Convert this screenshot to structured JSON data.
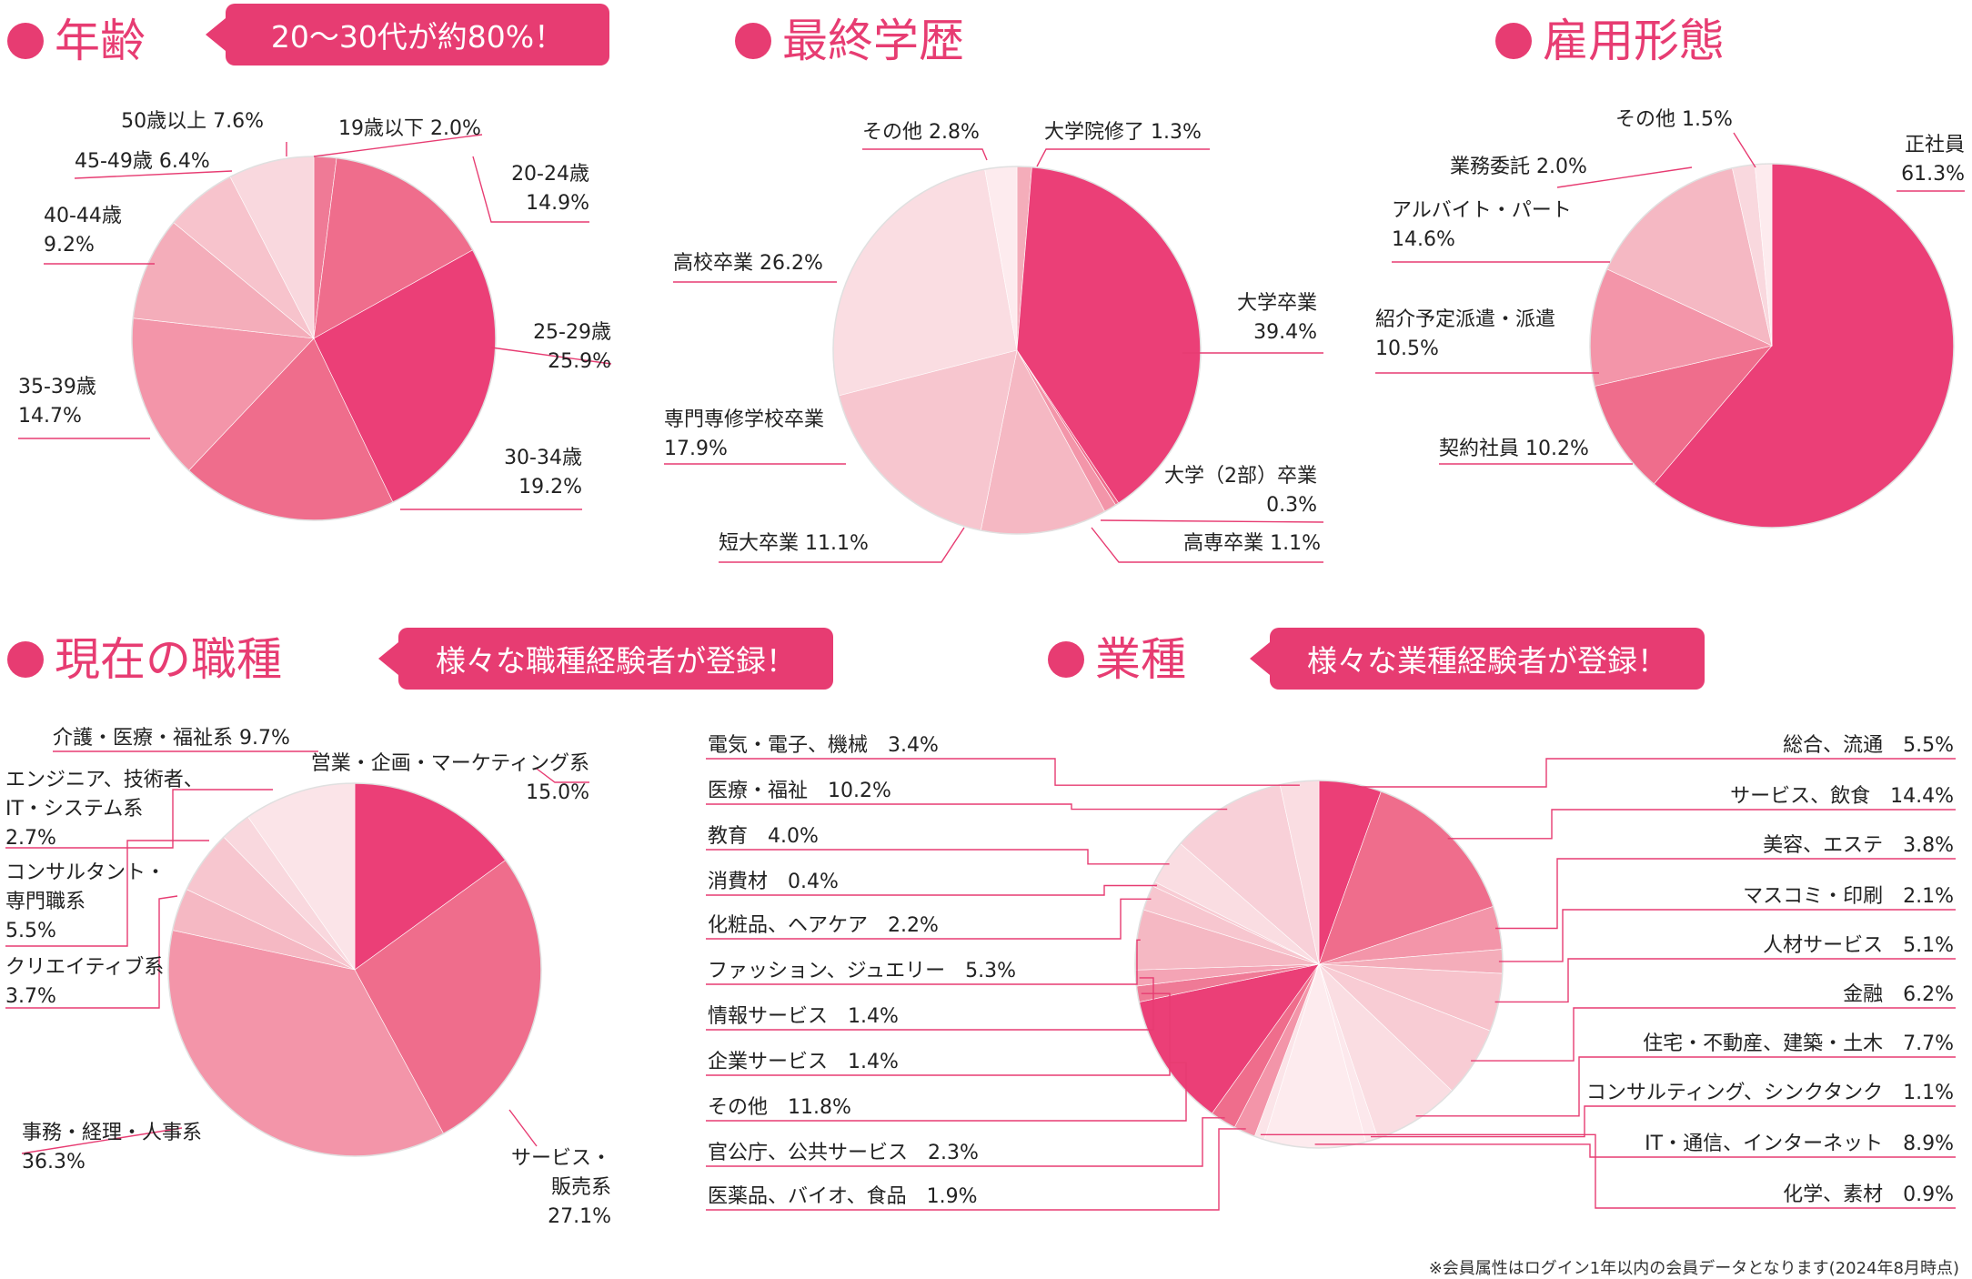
{
  "sections": {
    "age": {
      "title": "年齢",
      "callout": "20〜30代が約80%！"
    },
    "education": {
      "title": "最終学歴"
    },
    "employment": {
      "title": "雇用形態"
    },
    "job": {
      "title": "現在の職種",
      "callout": "様々な職種経験者が登録！"
    },
    "industry": {
      "title": "業種",
      "callout": "様々な業種経験者が登録！"
    }
  },
  "footnote": "※会員属性はログイン1年以内の会員データとなります(2024年8月時点)",
  "colors": {
    "accent": "#e73c72"
  },
  "chart_data": [
    {
      "id": "age",
      "type": "pie",
      "series": [
        {
          "values": [
            2.0,
            14.9,
            25.9,
            19.2,
            14.7,
            9.2,
            6.4,
            7.6
          ]
        }
      ],
      "labels": [
        [
          "19歳以下 2.0%"
        ],
        [
          "20-24歳",
          "14.9%"
        ],
        [
          "25-29歳",
          "25.9%"
        ],
        [
          "30-34歳",
          "19.2%"
        ],
        [
          "35-39歳",
          "14.7%"
        ],
        [
          "40-44歳",
          "9.2%"
        ],
        [
          "45-49歳 6.4%"
        ],
        [
          "50歳以上 7.6%"
        ]
      ],
      "colors": [
        "#ef7a96",
        "#ef6d8c",
        "#eb3f77",
        "#ef6d8c",
        "#f395a9",
        "#f4adba",
        "#f7c3cc",
        "#f9d8de"
      ]
    },
    {
      "id": "education",
      "type": "pie",
      "series": [
        {
          "values": [
            1.3,
            39.4,
            0.3,
            1.1,
            11.1,
            17.9,
            26.2,
            2.8
          ]
        }
      ],
      "labels": [
        [
          "大学院修了 1.3%"
        ],
        [
          "大学卒業",
          "39.4%"
        ],
        [
          "大学（2部）卒業",
          "0.3%"
        ],
        [
          "高専卒業 1.1%"
        ],
        [
          "短大卒業 11.1%"
        ],
        [
          "専門専修学校卒業",
          "17.9%"
        ],
        [
          "高校卒業 26.2%"
        ],
        [
          "その他 2.8%"
        ]
      ],
      "colors": [
        "#f4adba",
        "#eb3f77",
        "#ef6d8c",
        "#f395a9",
        "#f5b8c3",
        "#f7c6cf",
        "#fadde2",
        "#fdebee"
      ]
    },
    {
      "id": "employment",
      "type": "pie",
      "series": [
        {
          "values": [
            61.3,
            10.2,
            10.5,
            14.6,
            2.0,
            1.5
          ]
        }
      ],
      "labels": [
        [
          "正社員",
          "61.3%"
        ],
        [
          "契約社員 10.2%"
        ],
        [
          "紹介予定派遣・派遣",
          "10.5%"
        ],
        [
          "アルバイト・パート",
          "14.6%"
        ],
        [
          "業務委託 2.0%"
        ],
        [
          "その他 1.5%"
        ]
      ],
      "colors": [
        "#eb3f77",
        "#ef6d8c",
        "#f395a9",
        "#f5b8c3",
        "#f9d8de",
        "#fdebee"
      ]
    },
    {
      "id": "job",
      "type": "pie",
      "series": [
        {
          "values": [
            15.0,
            27.1,
            36.3,
            3.7,
            5.5,
            2.7,
            9.7
          ]
        }
      ],
      "labels": [
        [
          "営業・企画・マーケティング系",
          "15.0%"
        ],
        [
          "サービス・",
          "販売系",
          "27.1%"
        ],
        [
          "事務・経理・人事系",
          "36.3%"
        ],
        [
          "クリエイティブ系",
          "3.7%"
        ],
        [
          "コンサルタント・",
          "専門職系",
          "5.5%"
        ],
        [
          "エンジニア、技術者、",
          "IT・システム系",
          "2.7%"
        ],
        [
          "介護・医療・福祉系 9.7%"
        ]
      ],
      "colors": [
        "#eb3f77",
        "#ef6d8c",
        "#f395a9",
        "#f5b8c3",
        "#f7c6cf",
        "#f9d8de",
        "#fbe4e8"
      ]
    },
    {
      "id": "industry",
      "type": "pie",
      "series": [
        {
          "values": [
            5.5,
            14.4,
            3.8,
            2.1,
            5.1,
            6.2,
            7.7,
            1.1,
            8.9,
            0.9,
            1.9,
            2.3,
            11.8,
            1.4,
            1.4,
            5.3,
            2.2,
            0.4,
            4.0,
            10.2,
            3.4
          ]
        }
      ],
      "labels": [
        "総合、流通　5.5%",
        "サービス、飲食　14.4%",
        "美容、エステ　3.8%",
        "マスコミ・印刷　2.1%",
        "人材サービス　5.1%",
        "金融　6.2%",
        "住宅・不動産、建築・土木　7.7%",
        "コンサルティング、シンクタンク　1.1%",
        "IT・通信、インターネット　8.9%",
        "化学、素材　0.9%",
        "医薬品、バイオ、食品　1.9%",
        "官公庁、公共サービス　2.3%",
        "その他　11.8%",
        "企業サービス　1.4%",
        "情報サービス　1.4%",
        "ファッション、ジュエリー　5.3%",
        "化粧品、ヘアケア　2.2%",
        "消費材　0.4%",
        "教育　4.0%",
        "医療・福祉　10.2%",
        "電気・電子、機械　3.4%"
      ],
      "colors": [
        "#eb3f77",
        "#ef6d8c",
        "#f395a9",
        "#f4adba",
        "#f7c3cc",
        "#f8ccd4",
        "#fadde2",
        "#fce8ec",
        "#fdebee",
        "#fbe4e8",
        "#f395a9",
        "#ef6d8c",
        "#eb3f77",
        "#ef7a96",
        "#f4a4b5",
        "#f5b8c3",
        "#f7c6cf",
        "#f8ccd4",
        "#fadde2",
        "#f8d0d8",
        "#fadde2"
      ]
    }
  ]
}
